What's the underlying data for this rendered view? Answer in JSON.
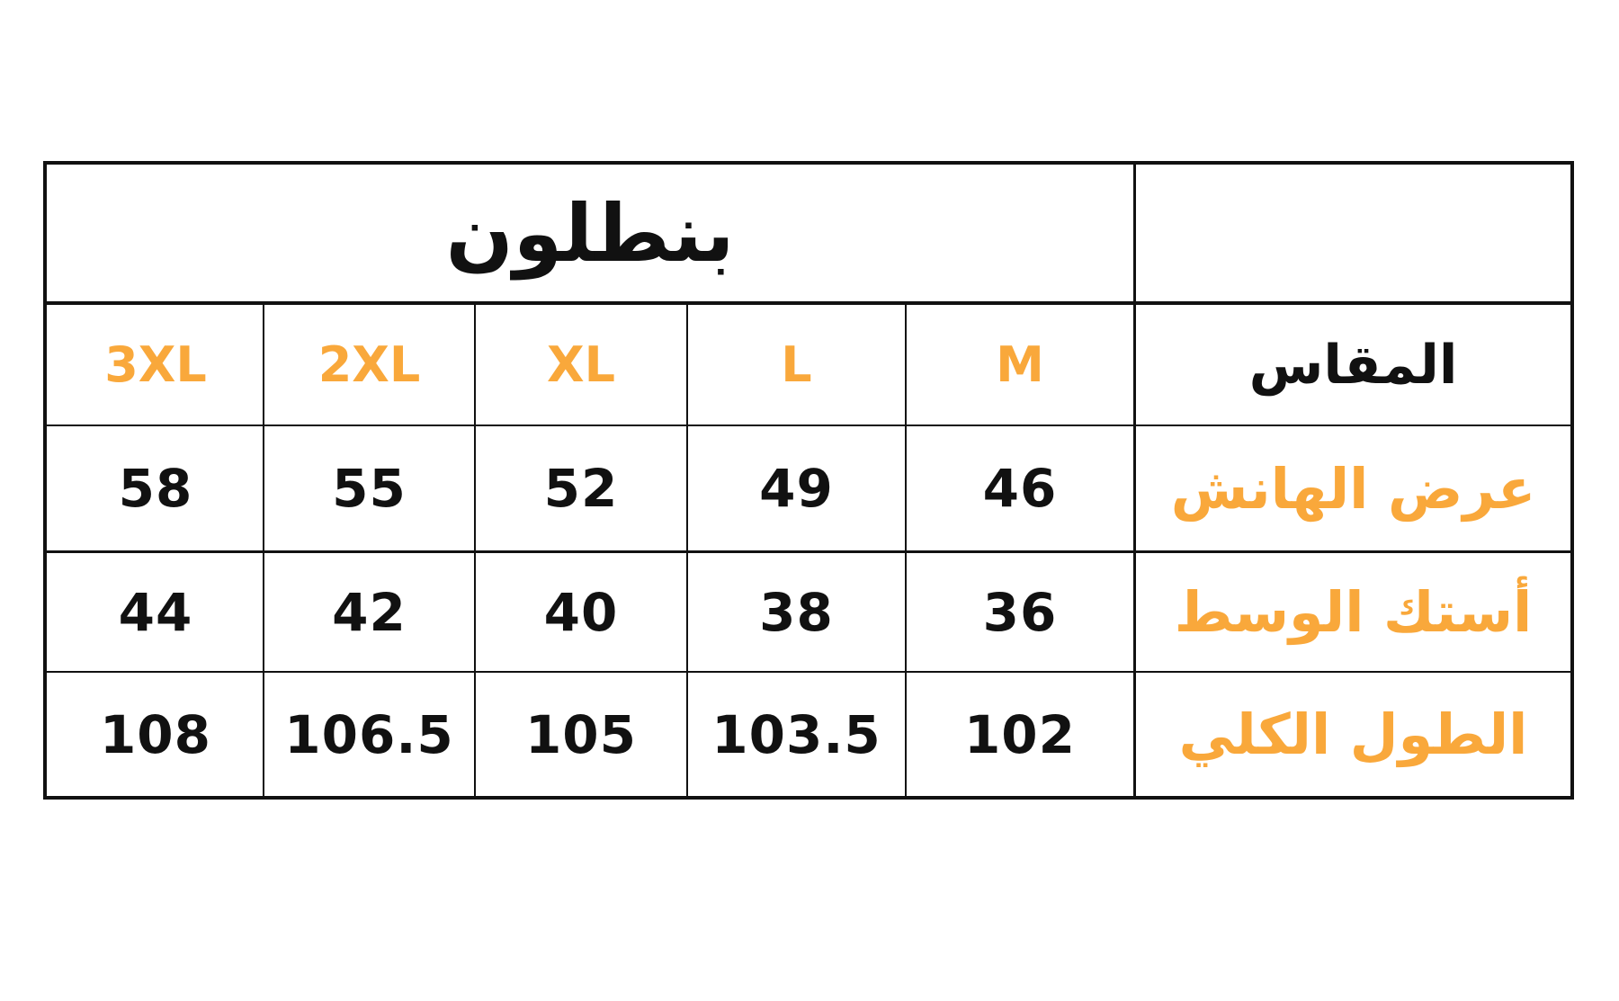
{
  "title": "بنطلون",
  "header_label": "المقاس",
  "sizes": [
    "M",
    "L",
    "XL",
    "2XL",
    "3XL"
  ],
  "rows": [
    {
      "label": "عرض الهانش",
      "values": [
        "46",
        "49",
        "52",
        "55",
        "58"
      ]
    },
    {
      "label": "أستك الوسط",
      "values": [
        "36",
        "38",
        "40",
        "42",
        "44"
      ]
    },
    {
      "label": "الطول الكلي",
      "values": [
        "102",
        "103.5",
        "105",
        "106.5",
        "108"
      ]
    }
  ],
  "colors": {
    "accent": "#F9A83B",
    "text": "#111111",
    "border": "#111111"
  }
}
